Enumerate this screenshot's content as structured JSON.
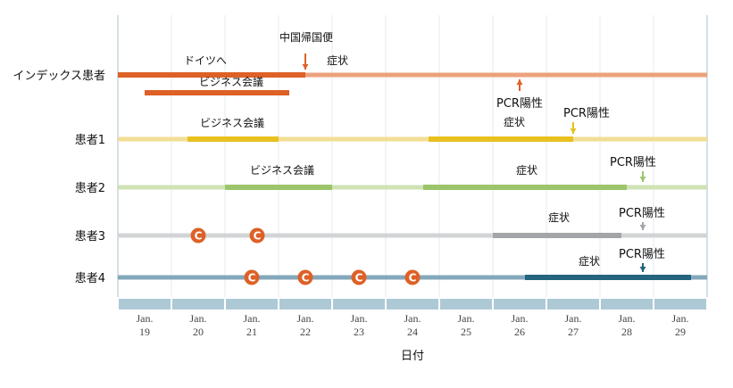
{
  "chart_data": {
    "type": "timeline",
    "xlabel": "日付",
    "x_ticks": [
      {
        "month": "Jan.",
        "day": "19"
      },
      {
        "month": "Jan.",
        "day": "20"
      },
      {
        "month": "Jan.",
        "day": "21"
      },
      {
        "month": "Jan.",
        "day": "22"
      },
      {
        "month": "Jan.",
        "day": "23"
      },
      {
        "month": "Jan.",
        "day": "24"
      },
      {
        "month": "Jan.",
        "day": "25"
      },
      {
        "month": "Jan.",
        "day": "26"
      },
      {
        "month": "Jan.",
        "day": "27"
      },
      {
        "month": "Jan.",
        "day": "28"
      },
      {
        "month": "Jan.",
        "day": "29"
      }
    ],
    "xlim": [
      18.5,
      29.5
    ],
    "rows": [
      {
        "label": "インデックス患者",
        "color": "#dd6127",
        "light": "#eba27c",
        "segments": [
          {
            "label": "ドイツへ",
            "start": 18.5,
            "end": 22.0,
            "strong": true
          },
          {
            "label": "症状",
            "start": 22.0,
            "end": 29.5,
            "strong": false
          }
        ],
        "extra_bar": {
          "label": "ビジネス会議",
          "start": 19.0,
          "end": 21.7
        },
        "event": {
          "label": "中国帰国便",
          "x": 22.0
        },
        "pcr": {
          "label": "PCR陽性",
          "x": 26.0,
          "dir": "up"
        }
      },
      {
        "label": "患者1",
        "color": "#e8c11f",
        "light": "#f2de94",
        "segments": [
          {
            "label": "ビジネス会議",
            "start": 19.8,
            "end": 21.5
          },
          {
            "label": "症状",
            "start": 24.3,
            "end": 27.0
          }
        ],
        "pcr": {
          "label": "PCR陽性",
          "x": 27.0,
          "dir": "down"
        }
      },
      {
        "label": "患者2",
        "color": "#9cc56b",
        "light": "#cfe2b4",
        "segments": [
          {
            "label": "ビジネス会議",
            "start": 20.5,
            "end": 22.5
          },
          {
            "label": "症状",
            "start": 24.2,
            "end": 28.0
          }
        ],
        "pcr": {
          "label": "PCR陽性",
          "x": 28.3,
          "dir": "down"
        }
      },
      {
        "label": "患者3",
        "color": "#a3a5a8",
        "light": "#d3d4d6",
        "segments": [
          {
            "label": "症状",
            "start": 25.5,
            "end": 27.9
          }
        ],
        "contacts": [
          20.0,
          21.1
        ],
        "pcr": {
          "label": "PCR陽性",
          "x": 28.3,
          "dir": "down"
        }
      },
      {
        "label": "患者4",
        "color": "#24647e",
        "light": "#84a8bb",
        "segments": [
          {
            "label": "症状",
            "start": 26.1,
            "end": 29.2
          }
        ],
        "contacts": [
          21.0,
          22.0,
          23.0,
          24.0
        ],
        "pcr": {
          "label": "PCR陽性",
          "x": 28.3,
          "dir": "down"
        }
      }
    ],
    "contact_marker": "C",
    "contact_color": "#dd6127",
    "axis_band_color": "#adc9d6"
  }
}
